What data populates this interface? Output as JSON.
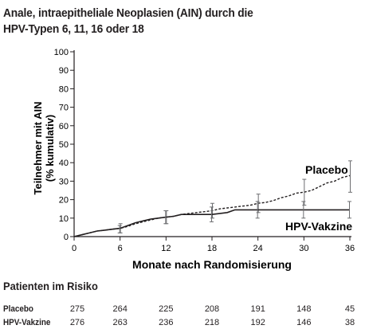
{
  "title_line1": "Anale, intraepitheliale Neoplasien (AIN) durch die",
  "title_line2": "HPV-Typen 6, 11, 16 oder 18",
  "chart_data": {
    "type": "line",
    "title": "Anale, intraepitheliale Neoplasien (AIN) durch die HPV-Typen 6, 11, 16 oder 18",
    "xlabel": "Monate nach Randomisierung",
    "ylabel_line1": "Teilnehmer mit AIN",
    "ylabel_line2": "(% kumulativ)",
    "xlim": [
      0,
      36
    ],
    "ylim": [
      0,
      100
    ],
    "x_ticks": [
      0,
      6,
      12,
      18,
      24,
      30,
      36
    ],
    "y_ticks": [
      0,
      10,
      20,
      30,
      40,
      50,
      60,
      70,
      80,
      90,
      100
    ],
    "grid": false,
    "series": [
      {
        "name": "Placebo",
        "style": "dashed",
        "x": [
          0,
          1,
          2,
          3,
          4,
          5,
          6,
          7,
          8,
          9,
          10,
          11,
          12,
          13,
          14,
          15,
          16,
          17,
          18,
          19,
          20,
          21,
          22,
          23,
          24,
          25,
          26,
          27,
          28,
          29,
          30,
          31,
          32,
          33,
          34,
          35,
          36
        ],
        "values": [
          0,
          1,
          2,
          3,
          3.5,
          4,
          4.5,
          5.5,
          7,
          8,
          9,
          10,
          10.5,
          11,
          12,
          12.5,
          13,
          13.5,
          14,
          15,
          15.5,
          16,
          16.5,
          17,
          18,
          18.5,
          19.5,
          21,
          22,
          23.5,
          24,
          25,
          27,
          29,
          30,
          32,
          33
        ],
        "error_bars": [
          {
            "x": 6,
            "low": 2,
            "high": 7
          },
          {
            "x": 12,
            "low": 7,
            "high": 14
          },
          {
            "x": 18,
            "low": 10,
            "high": 18
          },
          {
            "x": 24,
            "low": 13,
            "high": 23
          },
          {
            "x": 30,
            "low": 17,
            "high": 31
          },
          {
            "x": 36,
            "low": 24,
            "high": 41
          }
        ]
      },
      {
        "name": "HPV-Vakzine",
        "style": "solid",
        "x": [
          0,
          1,
          2,
          3,
          4,
          5,
          6,
          7,
          8,
          9,
          10,
          11,
          12,
          13,
          14,
          18,
          20,
          21,
          36
        ],
        "values": [
          0,
          1,
          2,
          3,
          3.5,
          4,
          4.5,
          6,
          7.5,
          8.5,
          9.5,
          10,
          10.5,
          11,
          12,
          12,
          13,
          14.5,
          14.5
        ],
        "error_bars": [
          {
            "x": 6,
            "low": 2,
            "high": 6
          },
          {
            "x": 12,
            "low": 7,
            "high": 14
          },
          {
            "x": 18,
            "low": 8,
            "high": 16
          },
          {
            "x": 24,
            "low": 10,
            "high": 19
          },
          {
            "x": 30,
            "low": 10,
            "high": 19
          },
          {
            "x": 36,
            "low": 10,
            "high": 19
          }
        ]
      }
    ],
    "series_labels": [
      "Placebo",
      "HPV-Vakzine"
    ]
  },
  "risk_table": {
    "title": "Patienten im Risiko",
    "rows": [
      {
        "label": "Placebo",
        "values": [
          "275",
          "264",
          "225",
          "208",
          "191",
          "148",
          "45"
        ]
      },
      {
        "label": "HPV-Vakzine",
        "values": [
          "276",
          "263",
          "236",
          "218",
          "192",
          "146",
          "38"
        ]
      }
    ]
  }
}
